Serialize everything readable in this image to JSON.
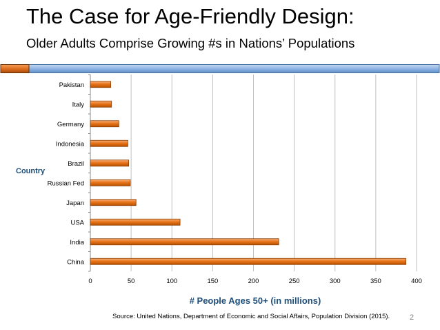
{
  "slide": {
    "title": "The Case for Age-Friendly Design:",
    "subtitle": "Older Adults Comprise Growing #s in Nations’ Populations",
    "source": "Source: United Nations, Department of Economic and Social Affairs, Population Division (2015).",
    "page_number": "2",
    "progress_fraction": 0.065
  },
  "colors": {
    "bar_fill": "#e8741a",
    "bar_highlight": "#f6b07a",
    "bar_outline": "#8a3c00",
    "grid": "#bfbfbf",
    "axis_title": "#1f4e79",
    "deco_blue": "#8eb4e3",
    "deco_orange": "#e07020"
  },
  "chart_data": {
    "type": "bar",
    "orientation": "horizontal",
    "categories": [
      "China",
      "India",
      "USA",
      "Japan",
      "Russian Fed",
      "Brazil",
      "Indonesia",
      "Germany",
      "Italy",
      "Pakistan"
    ],
    "values": [
      387,
      231,
      110,
      56,
      49,
      47,
      46,
      35,
      26,
      25
    ],
    "xlabel": "# People Ages 50+ (in millions)",
    "ylabel": "Country",
    "xlim": [
      0,
      400
    ],
    "xticks": [
      "0",
      "50",
      "100",
      "150",
      "200",
      "250",
      "300",
      "350",
      "400"
    ],
    "grid": true
  }
}
